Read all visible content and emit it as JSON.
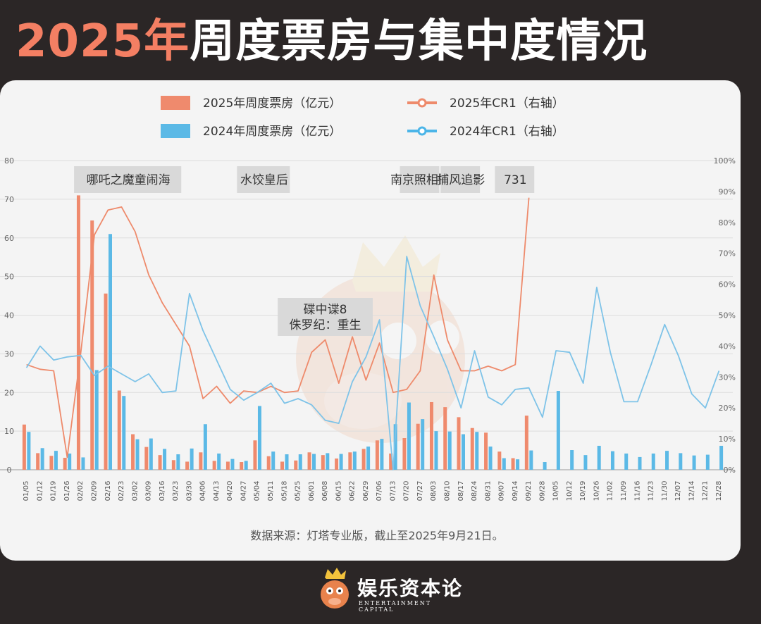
{
  "title": {
    "year_part": "2025年",
    "rest": "周度票房与集中度情况"
  },
  "source_note": "数据来源：灯塔专业版，截止至2025年9月21日。",
  "logo": {
    "name": "娱乐资本论",
    "en": "ENTERTAINMENT CAPITAL"
  },
  "colors": {
    "bar_2025": "#ef8a6d",
    "bar_2024": "#5bb9e6",
    "line_2025": "#ee8a6b",
    "line_2024": "#7ec3e8",
    "label_bg": "#d9d9d9"
  },
  "chart_data": {
    "type": "bar",
    "legend": [
      {
        "name": "2025年周度票房（亿元）",
        "kind": "bar",
        "color": "#ef8a6d"
      },
      {
        "name": "2024年周度票房（亿元）",
        "kind": "bar",
        "color": "#5bb9e6"
      },
      {
        "name": "2025年CR1（右轴）",
        "kind": "line",
        "color": "#ee8a6b"
      },
      {
        "name": "2024年CR1（右轴）",
        "kind": "line",
        "color": "#4bb5e8"
      }
    ],
    "categories": [
      "01/05",
      "01/12",
      "01/19",
      "01/26",
      "02/02",
      "02/09",
      "02/16",
      "02/23",
      "03/02",
      "03/09",
      "03/16",
      "03/23",
      "03/30",
      "04/06",
      "04/13",
      "04/20",
      "04/27",
      "05/04",
      "05/11",
      "05/18",
      "05/25",
      "06/01",
      "06/08",
      "06/15",
      "06/22",
      "06/29",
      "07/06",
      "07/13",
      "07/20",
      "07/27",
      "08/03",
      "08/10",
      "08/17",
      "08/24",
      "08/31",
      "09/07",
      "09/14",
      "09/21",
      "09/28",
      "10/05",
      "10/12",
      "10/19",
      "10/26",
      "11/02",
      "11/09",
      "11/16",
      "11/23",
      "11/30",
      "12/07",
      "12/14",
      "12/21",
      "12/28"
    ],
    "left_axis": {
      "ylim": [
        0,
        80
      ],
      "ticks": [
        "0",
        "10",
        "20",
        "30",
        "40",
        "50",
        "60",
        "70",
        "80"
      ]
    },
    "right_axis": {
      "ylim": [
        0,
        100
      ],
      "ticks": [
        "0%",
        "10%",
        "20%",
        "30%",
        "40%",
        "50%",
        "60%",
        "70%",
        "80%",
        "90%",
        "100%"
      ]
    },
    "series": [
      {
        "name": "2025年周度票房（亿元）",
        "kind": "bar",
        "values": [
          11.7,
          4.3,
          3.6,
          3.1,
          71,
          64.5,
          45.6,
          20.5,
          9.2,
          5.9,
          3.8,
          2.5,
          2.1,
          4.5,
          2.3,
          2.1,
          2.0,
          7.6,
          3.5,
          2.1,
          2.4,
          4.5,
          3.8,
          2.9,
          4.5,
          5.4,
          7.6,
          4.2,
          8.2,
          11.9,
          17.5,
          16.2,
          13.6,
          10.8,
          9.6,
          4.7,
          3.0,
          14.0,
          null,
          null,
          null,
          null,
          null,
          null,
          null,
          null,
          null,
          null,
          null,
          null,
          null,
          null
        ]
      },
      {
        "name": "2024年周度票房（亿元）",
        "kind": "bar",
        "values": [
          9.8,
          5.6,
          4.9,
          4.2,
          3.2,
          25.8,
          61,
          19.1,
          7.9,
          8.1,
          5.4,
          4.0,
          5.5,
          11.8,
          4.2,
          2.8,
          2.3,
          16.5,
          4.7,
          4.0,
          4.0,
          4.1,
          4.3,
          4.1,
          4.7,
          6.0,
          8.0,
          11.8,
          17.4,
          13.1,
          10.0,
          9.9,
          9.2,
          9.8,
          6.0,
          3.0,
          2.7,
          5.0,
          2.0,
          20.4,
          5.1,
          3.8,
          6.2,
          4.8,
          4.2,
          3.3,
          4.2,
          4.9,
          4.3,
          3.7,
          3.9,
          6.2
        ]
      },
      {
        "name": "2025年CR1（右轴）",
        "kind": "line",
        "values": [
          34,
          32.5,
          32,
          4,
          38,
          76,
          84,
          85,
          77,
          63,
          54,
          47,
          40,
          23,
          27,
          21.5,
          25.5,
          25,
          27,
          25,
          25.5,
          38,
          42,
          28,
          43,
          29,
          41,
          25,
          26,
          32,
          63,
          42,
          32,
          32,
          33.5,
          32,
          34,
          88,
          null,
          null,
          null,
          null,
          null,
          null,
          null,
          null,
          null,
          null,
          null,
          null,
          null,
          null
        ]
      },
      {
        "name": "2024年CR1（右轴）",
        "kind": "line",
        "values": [
          33,
          40,
          35.5,
          36.5,
          37,
          30.5,
          33.5,
          31,
          28.5,
          31,
          25,
          25.5,
          57,
          45,
          35.5,
          26,
          22.5,
          25,
          28,
          21.5,
          23,
          21,
          16,
          15,
          28.5,
          36.5,
          48.5,
          0,
          69,
          53,
          43,
          32.5,
          20,
          38.5,
          23.5,
          21,
          26,
          26.5,
          17,
          38.5,
          38,
          28,
          59,
          38,
          22,
          22,
          34,
          47,
          37,
          24.5,
          20,
          32
        ]
      }
    ],
    "top_labels": [
      {
        "text": "哪吒之魔童闹海",
        "from": "02/02",
        "to": "03/23"
      },
      {
        "text": "水饺皇后",
        "from": "04/27",
        "to": "05/18"
      },
      {
        "text": "南京照相馆",
        "from": "07/20",
        "to": "08/03"
      },
      {
        "text": "捕风追影",
        "from": "08/10",
        "to": "08/24"
      },
      {
        "text": "731",
        "from": "09/07",
        "to": "09/21"
      }
    ],
    "mid_label": {
      "lines": [
        "碟中谍8",
        "侏罗纪：重生"
      ],
      "from": "05/18",
      "to": "06/29"
    }
  }
}
